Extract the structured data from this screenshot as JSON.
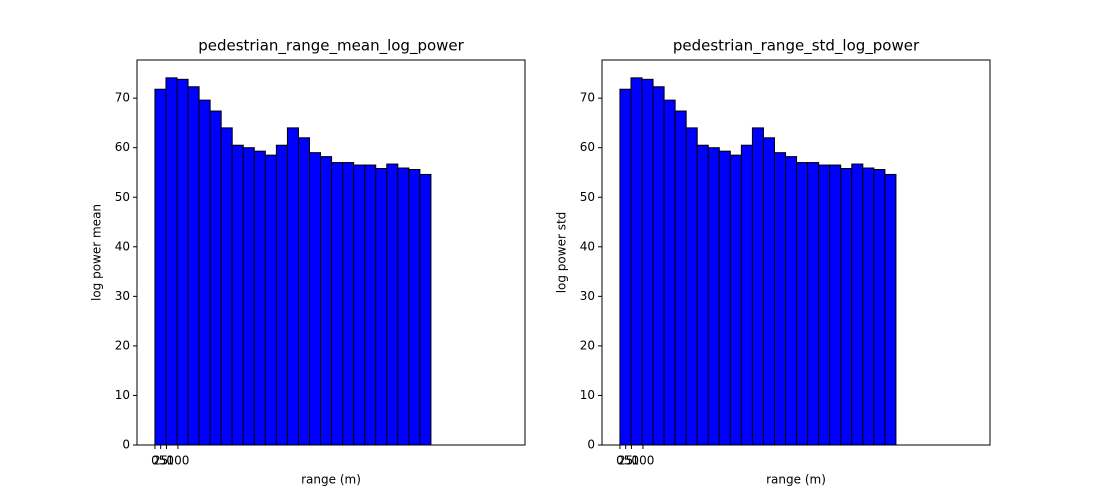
{
  "chart_data": [
    {
      "type": "histogram",
      "title": "pedestrian_range_mean_log_power",
      "x_label": "range (m)",
      "y_label": "log power mean",
      "bins": [
        0,
        48,
        96,
        144,
        192,
        240,
        288,
        336,
        384,
        432,
        480,
        528,
        576,
        624,
        672,
        720,
        768,
        816,
        864,
        912,
        960,
        1008,
        1056,
        1104,
        1152,
        1200,
        1248,
        1296,
        1344,
        1392,
        1440,
        1488,
        1536
      ],
      "values": [
        71.8,
        74.1,
        73.8,
        72.3,
        69.6,
        67.4,
        64,
        60.5,
        60,
        59.3,
        58.5,
        60.5,
        64,
        62,
        59,
        58.2,
        57,
        57,
        56.5,
        56.5,
        55.8,
        56.7,
        55.9,
        55.6,
        54.6,
        0,
        0,
        0,
        0,
        0,
        0,
        0
      ],
      "color": "#0000ff",
      "edgecolor": "#000000",
      "xlim": [
        -78,
        1609
      ],
      "ylim": [
        0,
        77.7
      ],
      "xticks": [
        0,
        25,
        50,
        100
      ],
      "yticks": [
        0,
        10,
        20,
        30,
        40,
        50,
        60,
        70
      ]
    },
    {
      "type": "histogram",
      "title": "pedestrian_range_std_log_power",
      "x_label": "range (m)",
      "y_label": "log power std",
      "bins": [
        0,
        48,
        96,
        144,
        192,
        240,
        288,
        336,
        384,
        432,
        480,
        528,
        576,
        624,
        672,
        720,
        768,
        816,
        864,
        912,
        960,
        1008,
        1056,
        1104,
        1152,
        1200,
        1248,
        1296,
        1344,
        1392,
        1440,
        1488,
        1536
      ],
      "values": [
        71.8,
        74.1,
        73.8,
        72.3,
        69.6,
        67.4,
        64,
        60.5,
        60,
        59.3,
        58.5,
        60.5,
        64,
        62,
        59,
        58.2,
        57,
        57,
        56.5,
        56.5,
        55.8,
        56.7,
        55.9,
        55.6,
        54.6,
        0,
        0,
        0,
        0,
        0,
        0,
        0
      ],
      "color": "#0000ff",
      "edgecolor": "#000000",
      "xlim": [
        -78,
        1609
      ],
      "ylim": [
        0,
        77.7
      ],
      "xticks": [
        0,
        25,
        50,
        100
      ],
      "yticks": [
        0,
        10,
        20,
        30,
        40,
        50,
        60,
        70
      ]
    }
  ]
}
